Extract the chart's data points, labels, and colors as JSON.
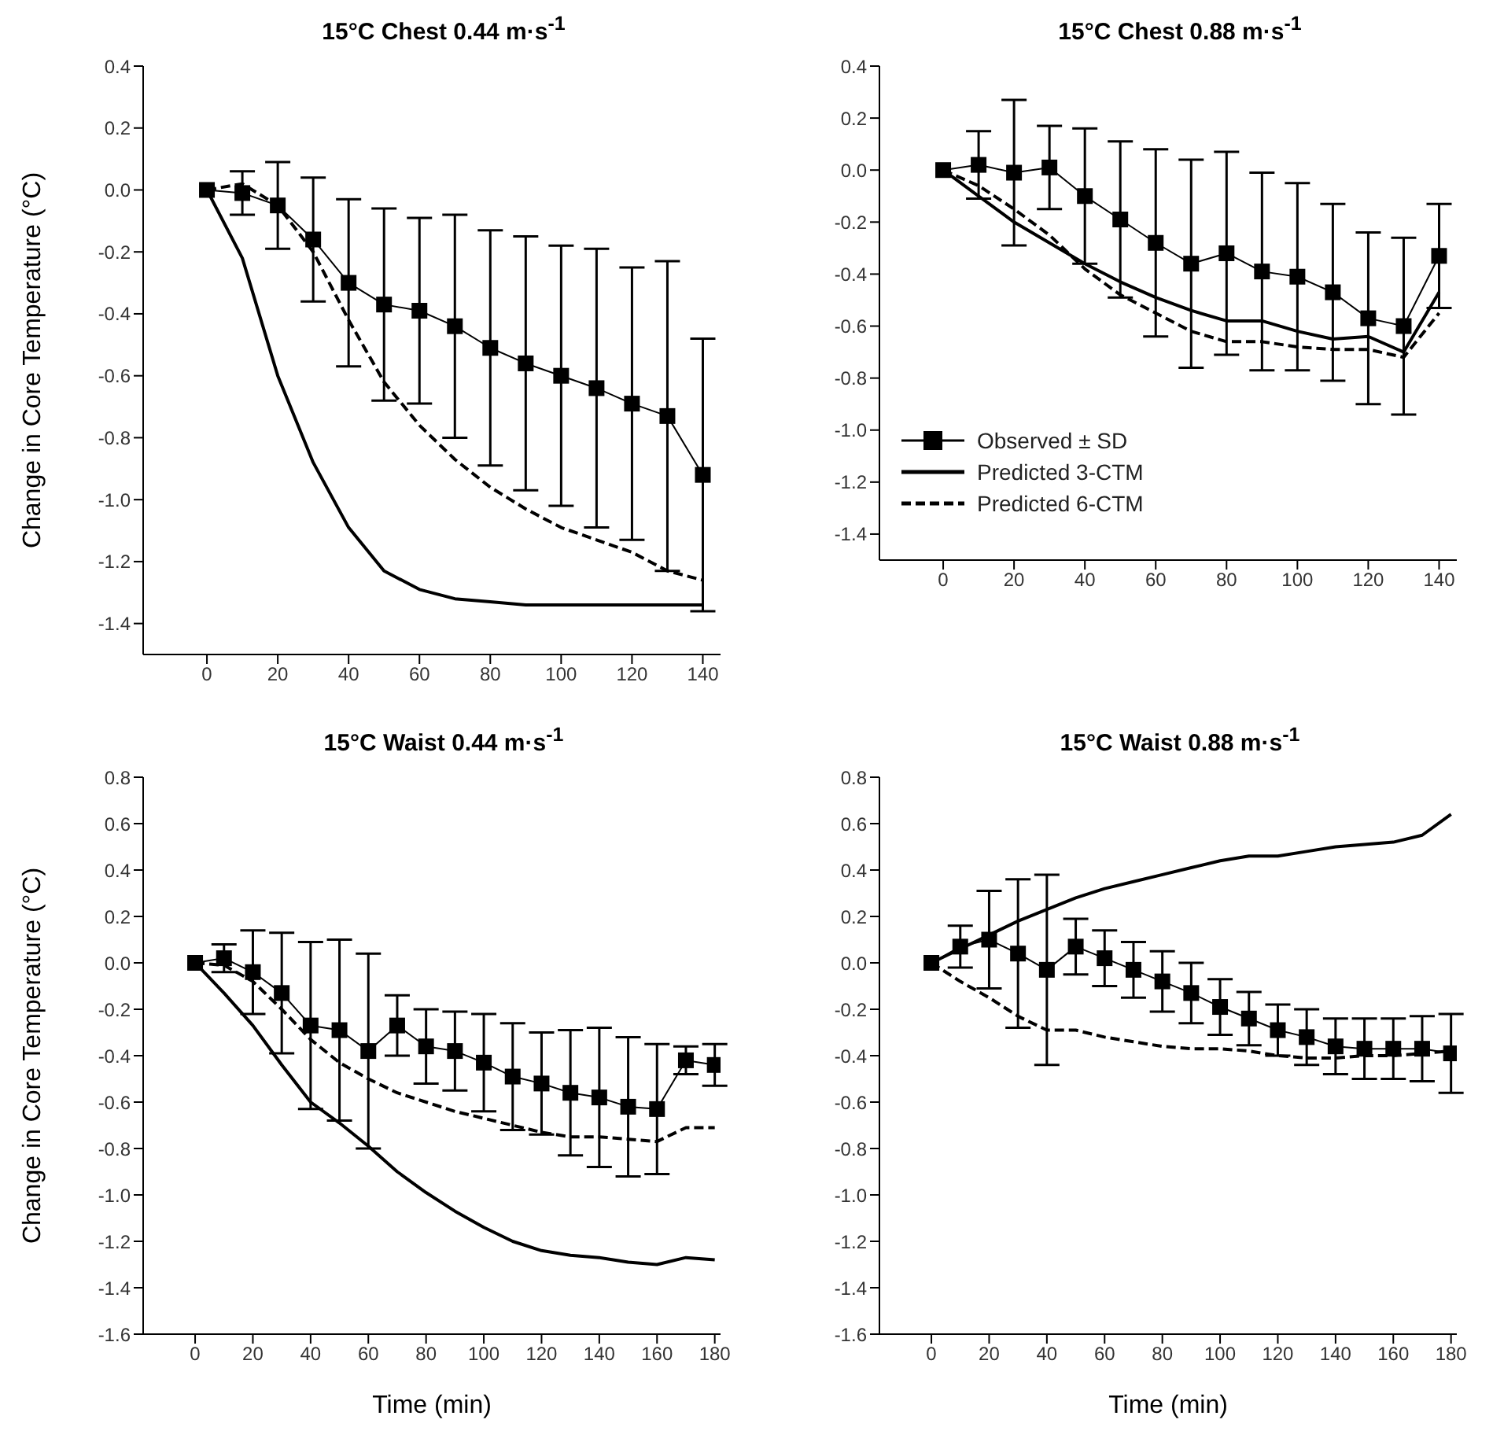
{
  "chart_data": [
    {
      "type": "line",
      "title": "15°C Chest 0.44 m·s$^{-1}$",
      "ylabel": "Change in Core Temperature (°C)",
      "x": [
        0,
        10,
        20,
        30,
        40,
        50,
        60,
        70,
        80,
        90,
        100,
        110,
        120,
        130,
        140
      ],
      "xlim": [
        -18,
        145
      ],
      "xticks": [
        0,
        20,
        40,
        60,
        80,
        100,
        120,
        140
      ],
      "ylim": [
        -1.5,
        0.4
      ],
      "yticks": [
        {
          "value": 0.4,
          "label": "0.4"
        },
        {
          "value": 0.2,
          "label": "0.2"
        },
        {
          "value": 0,
          "label": "0.0"
        },
        {
          "value": -0.2,
          "label": "-0.2"
        },
        {
          "value": -0.4,
          "label": "-0.4"
        },
        {
          "value": -0.6,
          "label": "-0.6"
        },
        {
          "value": -0.8,
          "label": "-0.8"
        },
        {
          "value": -1,
          "label": "-1.0"
        },
        {
          "value": -1.2,
          "label": "-1.2"
        },
        {
          "value": -1.4,
          "label": "-1.4"
        }
      ],
      "legend": false,
      "series": [
        {
          "color": "#000000",
          "marker": "square",
          "line_style": "solid",
          "values": [
            0,
            -0.01,
            -0.05,
            -0.16,
            -0.3,
            -0.37,
            -0.39,
            -0.44,
            -0.51,
            -0.56,
            -0.6,
            -0.64,
            -0.69,
            -0.73,
            -0.92
          ],
          "errors": [
            null,
            0.07,
            0.14,
            0.2,
            0.27,
            0.31,
            0.3,
            0.36,
            0.38,
            0.41,
            0.42,
            0.45,
            0.44,
            0.5,
            0.44
          ]
        },
        {
          "color": "#000000",
          "marker": "none",
          "line_style": "solid",
          "values": [
            0,
            -0.22,
            -0.6,
            -0.88,
            -1.09,
            -1.23,
            -1.29,
            -1.32,
            -1.33,
            -1.34,
            -1.34,
            -1.34,
            -1.34,
            -1.34,
            -1.34
          ]
        },
        {
          "color": "#000000",
          "marker": "none",
          "line_style": "dashed",
          "values": [
            0,
            0.02,
            -0.05,
            -0.2,
            -0.42,
            -0.62,
            -0.76,
            -0.87,
            -0.96,
            -1.03,
            -1.09,
            -1.13,
            -1.17,
            -1.23,
            -1.26
          ]
        }
      ]
    },
    {
      "type": "line",
      "title": "15°C Chest 0.88 m·s$^{-1}$",
      "x": [
        0,
        10,
        20,
        30,
        40,
        50,
        60,
        70,
        80,
        90,
        100,
        110,
        120,
        130,
        140
      ],
      "xlim": [
        -18,
        145
      ],
      "xticks": [
        0,
        20,
        40,
        60,
        80,
        100,
        120,
        140
      ],
      "ylim": [
        -1.5,
        0.4
      ],
      "yticks": [
        {
          "value": 0.4,
          "label": "0.4"
        },
        {
          "value": 0.2,
          "label": "0.2"
        },
        {
          "value": 0,
          "label": "0.0"
        },
        {
          "value": -0.2,
          "label": "-0.2"
        },
        {
          "value": -0.4,
          "label": "-0.4"
        },
        {
          "value": -0.6,
          "label": "-0.6"
        },
        {
          "value": -0.8,
          "label": "-0.8"
        },
        {
          "value": -1,
          "label": "-1.0"
        },
        {
          "value": -1.2,
          "label": "-1.2"
        },
        {
          "value": -1.4,
          "label": "-1.4"
        }
      ],
      "legend": "bottom left",
      "series": [
        {
          "name": "Observed ± SD",
          "color": "#000000",
          "marker": "square",
          "line_style": "solid",
          "values": [
            0,
            0.02,
            -0.01,
            0.01,
            -0.1,
            -0.19,
            -0.28,
            -0.36,
            -0.32,
            -0.39,
            -0.41,
            -0.47,
            -0.57,
            -0.6,
            -0.33
          ],
          "errors": [
            null,
            0.13,
            0.28,
            0.16,
            0.26,
            0.3,
            0.36,
            0.4,
            0.39,
            0.38,
            0.36,
            0.34,
            0.33,
            0.34,
            0.2
          ]
        },
        {
          "name": "Predicted 3-CTM",
          "color": "#000000",
          "marker": "none",
          "line_style": "solid",
          "values": [
            0,
            -0.1,
            -0.2,
            -0.28,
            -0.36,
            -0.43,
            -0.49,
            -0.54,
            -0.58,
            -0.58,
            -0.62,
            -0.65,
            -0.64,
            -0.7,
            -0.47
          ]
        },
        {
          "name": "Predicted 6-CTM",
          "color": "#000000",
          "marker": "none",
          "line_style": "dashed",
          "values": [
            0,
            -0.06,
            -0.15,
            -0.25,
            -0.38,
            -0.48,
            -0.55,
            -0.62,
            -0.66,
            -0.66,
            -0.68,
            -0.69,
            -0.69,
            -0.72,
            -0.55
          ]
        }
      ]
    },
    {
      "type": "line",
      "title": "15°C Waist 0.44 m·s$^{-1}$",
      "xlabel": "Time (min)",
      "ylabel": "Change in Core Temperature (°C)",
      "x": [
        0,
        10,
        20,
        30,
        40,
        50,
        60,
        70,
        80,
        90,
        100,
        110,
        120,
        130,
        140,
        150,
        160,
        170,
        180
      ],
      "xlim": [
        -18,
        182
      ],
      "xticks": [
        0,
        20,
        40,
        60,
        80,
        100,
        120,
        140,
        160,
        180
      ],
      "ylim": [
        -1.6,
        0.8
      ],
      "yticks": [
        {
          "value": 0.8,
          "label": "0.8"
        },
        {
          "value": 0.6,
          "label": "0.6"
        },
        {
          "value": 0.4,
          "label": "0.4"
        },
        {
          "value": 0.2,
          "label": "0.2"
        },
        {
          "value": 0,
          "label": "0.0"
        },
        {
          "value": -0.2,
          "label": "-0.2"
        },
        {
          "value": -0.4,
          "label": "-0.4"
        },
        {
          "value": -0.6,
          "label": "-0.6"
        },
        {
          "value": -0.8,
          "label": "-0.8"
        },
        {
          "value": -1,
          "label": "-1.0"
        },
        {
          "value": -1.2,
          "label": "-1.2"
        },
        {
          "value": -1.4,
          "label": "-1.4"
        },
        {
          "value": -1.6,
          "label": "-1.6"
        }
      ],
      "legend": false,
      "series": [
        {
          "color": "#000000",
          "marker": "square",
          "line_style": "solid",
          "values": [
            0,
            0.02,
            -0.04,
            -0.13,
            -0.27,
            -0.29,
            -0.38,
            -0.27,
            -0.36,
            -0.38,
            -0.43,
            -0.49,
            -0.52,
            -0.56,
            -0.58,
            -0.62,
            -0.63,
            -0.42,
            -0.44
          ],
          "errors": [
            null,
            0.06,
            0.18,
            0.26,
            0.36,
            0.39,
            0.42,
            0.13,
            0.16,
            0.17,
            0.21,
            0.23,
            0.22,
            0.27,
            0.3,
            0.3,
            0.28,
            0.06,
            0.09
          ]
        },
        {
          "color": "#000000",
          "marker": "none",
          "line_style": "solid",
          "values": [
            0,
            -0.13,
            -0.27,
            -0.44,
            -0.6,
            -0.69,
            -0.79,
            -0.9,
            -0.99,
            -1.07,
            -1.14,
            -1.2,
            -1.24,
            -1.26,
            -1.27,
            -1.29,
            -1.3,
            -1.27,
            -1.28
          ]
        },
        {
          "color": "#000000",
          "marker": "none",
          "line_style": "dashed",
          "values": [
            0,
            -0.01,
            -0.08,
            -0.2,
            -0.33,
            -0.43,
            -0.5,
            -0.56,
            -0.6,
            -0.64,
            -0.67,
            -0.7,
            -0.73,
            -0.75,
            -0.75,
            -0.76,
            -0.77,
            -0.71,
            -0.71
          ]
        }
      ]
    },
    {
      "type": "line",
      "title": "15°C Waist 0.88 m·s$^{-1}$",
      "xlabel": "Time (min)",
      "x": [
        0,
        10,
        20,
        30,
        40,
        50,
        60,
        70,
        80,
        90,
        100,
        110,
        120,
        130,
        140,
        150,
        160,
        170,
        180
      ],
      "xlim": [
        -18,
        182
      ],
      "xticks": [
        0,
        20,
        40,
        60,
        80,
        100,
        120,
        140,
        160,
        180
      ],
      "ylim": [
        -1.6,
        0.8
      ],
      "yticks": [
        {
          "value": 0.8,
          "label": "0.8"
        },
        {
          "value": 0.6,
          "label": "0.6"
        },
        {
          "value": 0.4,
          "label": "0.4"
        },
        {
          "value": 0.2,
          "label": "0.2"
        },
        {
          "value": 0,
          "label": "0.0"
        },
        {
          "value": -0.2,
          "label": "-0.2"
        },
        {
          "value": -0.4,
          "label": "-0.4"
        },
        {
          "value": -0.6,
          "label": "-0.6"
        },
        {
          "value": -0.8,
          "label": "-0.8"
        },
        {
          "value": -1,
          "label": "-1.0"
        },
        {
          "value": -1.2,
          "label": "-1.2"
        },
        {
          "value": -1.4,
          "label": "-1.4"
        },
        {
          "value": -1.6,
          "label": "-1.6"
        }
      ],
      "legend": false,
      "series": [
        {
          "color": "#000000",
          "marker": "square",
          "line_style": "solid",
          "values": [
            0,
            0.07,
            0.1,
            0.04,
            -0.03,
            0.07,
            0.02,
            -0.03,
            -0.08,
            -0.13,
            -0.19,
            -0.24,
            -0.29,
            -0.32,
            -0.36,
            -0.37,
            -0.37,
            -0.37,
            -0.39
          ],
          "errors": [
            null,
            0.09,
            0.21,
            0.32,
            0.41,
            0.12,
            0.12,
            0.12,
            0.13,
            0.13,
            0.12,
            0.115,
            0.11,
            0.12,
            0.12,
            0.13,
            0.13,
            0.14,
            0.17
          ]
        },
        {
          "color": "#000000",
          "marker": "none",
          "line_style": "solid",
          "values": [
            0,
            0.06,
            0.12,
            0.18,
            0.23,
            0.28,
            0.32,
            0.35,
            0.38,
            0.41,
            0.44,
            0.46,
            0.46,
            0.48,
            0.5,
            0.51,
            0.52,
            0.55,
            0.64
          ]
        },
        {
          "color": "#000000",
          "marker": "none",
          "line_style": "dashed",
          "values": [
            0,
            -0.08,
            -0.15,
            -0.23,
            -0.29,
            -0.29,
            -0.32,
            -0.34,
            -0.36,
            -0.37,
            -0.37,
            -0.38,
            -0.4,
            -0.41,
            -0.41,
            -0.4,
            -0.4,
            -0.39,
            -0.38
          ]
        }
      ]
    }
  ]
}
